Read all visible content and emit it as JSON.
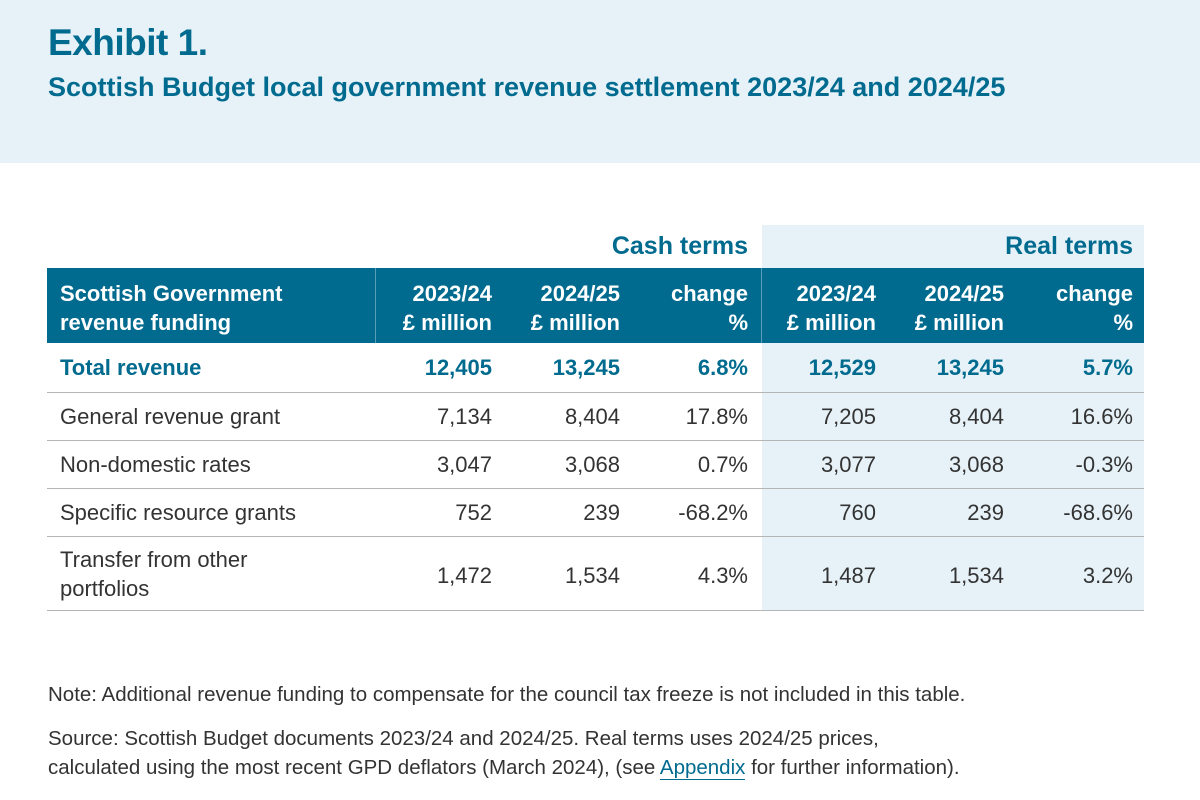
{
  "exhibit": {
    "label": "Exhibit 1.",
    "title": "Scottish Budget local government revenue settlement 2023/24 and 2024/25"
  },
  "table": {
    "group_headers": {
      "cash": "Cash terms",
      "real": "Real terms"
    },
    "columns": {
      "label_line1": "Scottish Government",
      "label_line2": "revenue funding",
      "cash_2324_l1": "2023/24",
      "cash_2324_l2": "£ million",
      "cash_2425_l1": "2024/25",
      "cash_2425_l2": "£ million",
      "cash_chg_l1": "change",
      "cash_chg_l2": "%",
      "real_2324_l1": "2023/24",
      "real_2324_l2": "£ million",
      "real_2425_l1": "2024/25",
      "real_2425_l2": "£ million",
      "real_chg_l1": "change",
      "real_chg_l2": "%"
    },
    "rows": [
      {
        "label": "Total revenue",
        "cash_2324": "12,405",
        "cash_2425": "13,245",
        "cash_chg": "6.8%",
        "real_2324": "12,529",
        "real_2425": "13,245",
        "real_chg": "5.7%"
      },
      {
        "label": "General revenue grant",
        "cash_2324": "7,134",
        "cash_2425": "8,404",
        "cash_chg": "17.8%",
        "real_2324": "7,205",
        "real_2425": "8,404",
        "real_chg": "16.6%"
      },
      {
        "label": "Non-domestic rates",
        "cash_2324": "3,047",
        "cash_2425": "3,068",
        "cash_chg": "0.7%",
        "real_2324": "3,077",
        "real_2425": "3,068",
        "real_chg": "-0.3%"
      },
      {
        "label": "Specific resource grants",
        "cash_2324": "752",
        "cash_2425": "239",
        "cash_chg": "-68.2%",
        "real_2324": "760",
        "real_2425": "239",
        "real_chg": "-68.6%"
      },
      {
        "label_line1": "Transfer from other",
        "label_line2": "portfolios",
        "cash_2324": "1,472",
        "cash_2425": "1,534",
        "cash_chg": "4.3%",
        "real_2324": "1,487",
        "real_2425": "1,534",
        "real_chg": "3.2%"
      }
    ]
  },
  "notes": {
    "note": "Note: Additional revenue funding to compensate for the council tax freeze is not included in this table.",
    "source_line1": "Source: Scottish Budget documents 2023/24 and 2024/25. Real terms uses 2024/25 prices,",
    "source_line2_pre": "calculated using the most recent GPD deflators (March 2024), (see ",
    "source_link": "Appendix",
    "source_line2_post": " for further information)."
  }
}
